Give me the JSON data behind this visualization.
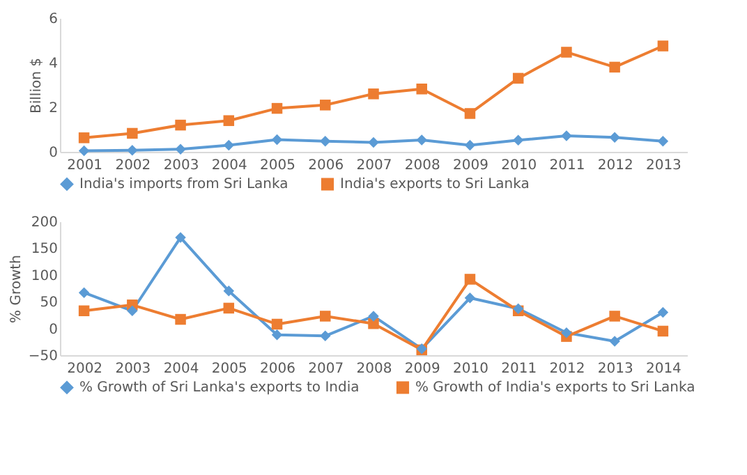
{
  "chart_data": [
    {
      "type": "line",
      "ylabel": "Billion $",
      "categories": [
        "2001",
        "2002",
        "2003",
        "2004",
        "2005",
        "2006",
        "2007",
        "2008",
        "2009",
        "2010",
        "2011",
        "2012",
        "2013"
      ],
      "ylim": [
        0,
        6
      ],
      "yticks": [
        0,
        2,
        4,
        6
      ],
      "grid": false,
      "legend": "bottom",
      "line_style": "solid",
      "series": [
        {
          "name": "India's imports from Sri Lanka",
          "color": "#5b9bd5",
          "marker": "diamond",
          "values": [
            0.05,
            0.07,
            0.12,
            0.3,
            0.55,
            0.48,
            0.42,
            0.53,
            0.3,
            0.52,
            0.72,
            0.65,
            0.48
          ]
        },
        {
          "name": "India's exports to Sri Lanka",
          "color": "#ed7d31",
          "marker": "square",
          "values": [
            0.63,
            0.83,
            1.2,
            1.4,
            1.95,
            2.1,
            2.6,
            2.82,
            1.72,
            3.3,
            4.47,
            3.8,
            4.75
          ]
        }
      ]
    },
    {
      "type": "line",
      "ylabel": "% Growth",
      "categories": [
        "2002",
        "2003",
        "2004",
        "2005",
        "2006",
        "2007",
        "2008",
        "2009",
        "2010",
        "2011",
        "2012",
        "2013",
        "2014"
      ],
      "ylim": [
        -50,
        200
      ],
      "yticks": [
        -50,
        0,
        50,
        100,
        150,
        200
      ],
      "grid": false,
      "legend": "bottom",
      "line_style": "solid",
      "series": [
        {
          "name": "% Growth of Sri Lanka's exports  to India",
          "color": "#5b9bd5",
          "marker": "diamond",
          "values": [
            67,
            33,
            170,
            70,
            -12,
            -14,
            23,
            -38,
            57,
            37,
            -8,
            -24,
            30
          ]
        },
        {
          "name": "% Growth of India's exports to Sri Lanka",
          "color": "#ed7d31",
          "marker": "square",
          "values": [
            33,
            44,
            17,
            38,
            8,
            23,
            9,
            -40,
            92,
            33,
            -15,
            23,
            -5
          ]
        }
      ]
    }
  ]
}
